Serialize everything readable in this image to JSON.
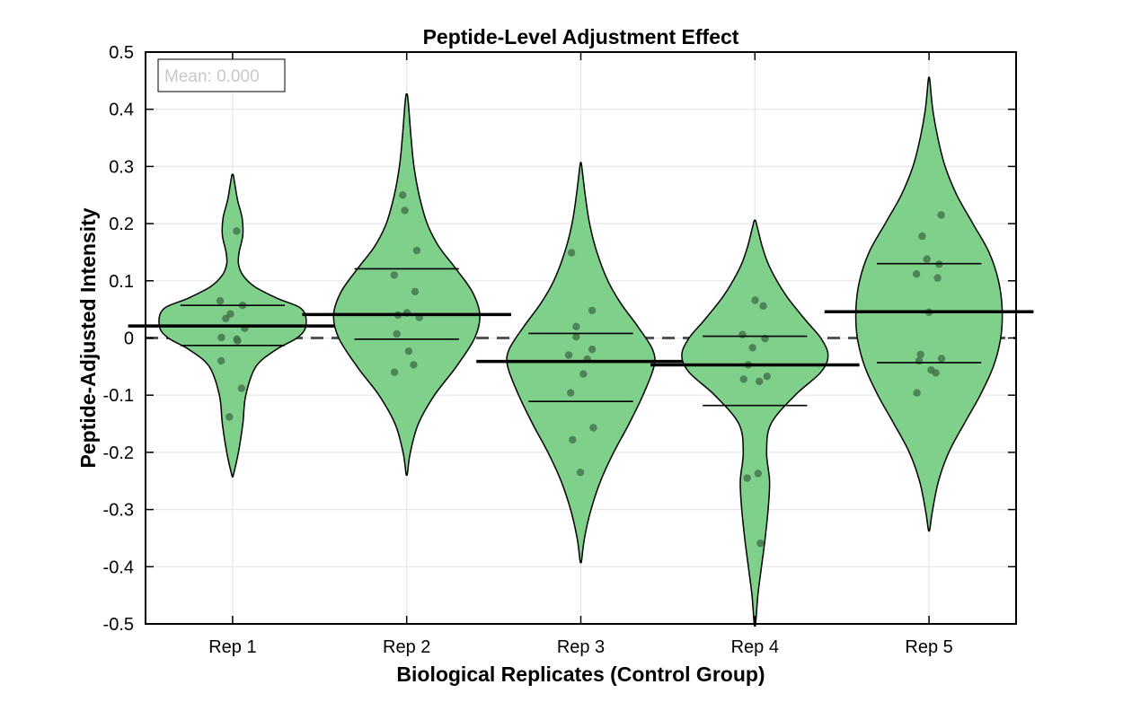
{
  "chart_data": {
    "type": "violin",
    "title": "Peptide-Level Adjustment Effect",
    "xlabel": "Biological Replicates (Control Group)",
    "ylabel": "Peptide-Adjusted Intensity",
    "ylim": [
      -0.5,
      0.5
    ],
    "yticks": [
      "0.5",
      "0.4",
      "0.3",
      "0.2",
      "0.1",
      "0",
      "-0.1",
      "-0.2",
      "-0.3",
      "-0.4",
      "-0.5"
    ],
    "ytick_values": [
      0.5,
      0.4,
      0.3,
      0.2,
      0.1,
      0,
      -0.1,
      -0.2,
      -0.3,
      -0.4,
      -0.5
    ],
    "categories": [
      "Rep 1",
      "Rep 2",
      "Rep 3",
      "Rep 4",
      "Rep 5"
    ],
    "annotation": "Mean: 0.000",
    "reference_line": 0,
    "grid": true,
    "colors": {
      "violin_fill": "#7fd08a",
      "violin_edge": "#000000",
      "points": "#3d6b45",
      "reference": "#555555"
    },
    "series": [
      {
        "category": "Rep 1",
        "median": 0.021,
        "q1": -0.013,
        "q3": 0.057,
        "range": [
          -0.24,
          0.285
        ],
        "points": [
          0.187,
          0.065,
          0.057,
          0.042,
          0.034,
          0.017,
          0.001,
          -0.002,
          -0.005,
          -0.04,
          -0.088,
          -0.138
        ],
        "density": [
          [
            -0.24,
            0.01
          ],
          [
            -0.2,
            0.08
          ],
          [
            -0.15,
            0.14
          ],
          [
            -0.1,
            0.18
          ],
          [
            -0.05,
            0.32
          ],
          [
            -0.02,
            0.6
          ],
          [
            0.0,
            0.88
          ],
          [
            0.02,
            1.0
          ],
          [
            0.05,
            0.95
          ],
          [
            0.07,
            0.6
          ],
          [
            0.09,
            0.3
          ],
          [
            0.11,
            0.14
          ],
          [
            0.13,
            0.08
          ],
          [
            0.15,
            0.09
          ],
          [
            0.18,
            0.14
          ],
          [
            0.21,
            0.13
          ],
          [
            0.24,
            0.07
          ],
          [
            0.27,
            0.03
          ],
          [
            0.285,
            0.01
          ]
        ]
      },
      {
        "category": "Rep 2",
        "median": 0.041,
        "q1": -0.002,
        "q3": 0.121,
        "range": [
          -0.237,
          0.425
        ],
        "points": [
          0.25,
          0.223,
          0.153,
          0.11,
          0.081,
          0.044,
          0.04,
          0.036,
          0.007,
          -0.023,
          -0.047,
          -0.06
        ],
        "density": [
          [
            -0.237,
            0.01
          ],
          [
            -0.2,
            0.05
          ],
          [
            -0.15,
            0.16
          ],
          [
            -0.1,
            0.38
          ],
          [
            -0.05,
            0.68
          ],
          [
            0.0,
            0.93
          ],
          [
            0.04,
            1.0
          ],
          [
            0.08,
            0.9
          ],
          [
            0.12,
            0.68
          ],
          [
            0.16,
            0.44
          ],
          [
            0.2,
            0.28
          ],
          [
            0.25,
            0.17
          ],
          [
            0.3,
            0.1
          ],
          [
            0.35,
            0.06
          ],
          [
            0.4,
            0.03
          ],
          [
            0.425,
            0.01
          ]
        ]
      },
      {
        "category": "Rep 3",
        "median": -0.041,
        "q1": -0.111,
        "q3": 0.008,
        "range": [
          -0.39,
          0.303
        ],
        "points": [
          0.149,
          0.048,
          0.02,
          0.002,
          -0.02,
          -0.03,
          -0.037,
          -0.063,
          -0.096,
          -0.157,
          -0.178,
          -0.235
        ],
        "density": [
          [
            -0.39,
            0.01
          ],
          [
            -0.35,
            0.05
          ],
          [
            -0.3,
            0.14
          ],
          [
            -0.25,
            0.27
          ],
          [
            -0.2,
            0.45
          ],
          [
            -0.15,
            0.66
          ],
          [
            -0.1,
            0.85
          ],
          [
            -0.05,
            1.0
          ],
          [
            -0.02,
            0.98
          ],
          [
            0.02,
            0.78
          ],
          [
            0.06,
            0.55
          ],
          [
            0.1,
            0.37
          ],
          [
            0.15,
            0.22
          ],
          [
            0.2,
            0.12
          ],
          [
            0.25,
            0.06
          ],
          [
            0.303,
            0.01
          ]
        ]
      },
      {
        "category": "Rep 4",
        "median": -0.047,
        "q1": -0.118,
        "q3": 0.003,
        "range": [
          -0.5,
          0.205
        ],
        "points": [
          0.066,
          0.056,
          0.006,
          -0.001,
          -0.017,
          -0.047,
          -0.067,
          -0.072,
          -0.076,
          -0.237,
          -0.245,
          -0.359
        ],
        "density": [
          [
            -0.5,
            0.01
          ],
          [
            -0.45,
            0.04
          ],
          [
            -0.4,
            0.09
          ],
          [
            -0.35,
            0.14
          ],
          [
            -0.3,
            0.18
          ],
          [
            -0.25,
            0.2
          ],
          [
            -0.2,
            0.16
          ],
          [
            -0.15,
            0.22
          ],
          [
            -0.1,
            0.55
          ],
          [
            -0.06,
            0.9
          ],
          [
            -0.03,
            1.0
          ],
          [
            0.0,
            0.9
          ],
          [
            0.03,
            0.7
          ],
          [
            0.07,
            0.45
          ],
          [
            0.1,
            0.3
          ],
          [
            0.13,
            0.18
          ],
          [
            0.16,
            0.1
          ],
          [
            0.19,
            0.04
          ],
          [
            0.205,
            0.01
          ]
        ]
      },
      {
        "category": "Rep 5",
        "median": 0.046,
        "q1": -0.043,
        "q3": 0.13,
        "range": [
          -0.335,
          0.452
        ],
        "points": [
          0.215,
          0.178,
          0.138,
          0.129,
          0.112,
          0.105,
          0.045,
          -0.029,
          -0.036,
          -0.04,
          -0.056,
          -0.061,
          -0.096
        ],
        "density": [
          [
            -0.335,
            0.01
          ],
          [
            -0.3,
            0.05
          ],
          [
            -0.25,
            0.13
          ],
          [
            -0.2,
            0.27
          ],
          [
            -0.15,
            0.48
          ],
          [
            -0.1,
            0.7
          ],
          [
            -0.05,
            0.88
          ],
          [
            0.0,
            0.98
          ],
          [
            0.05,
            1.0
          ],
          [
            0.1,
            0.95
          ],
          [
            0.15,
            0.82
          ],
          [
            0.2,
            0.6
          ],
          [
            0.25,
            0.38
          ],
          [
            0.3,
            0.22
          ],
          [
            0.35,
            0.12
          ],
          [
            0.4,
            0.05
          ],
          [
            0.452,
            0.01
          ]
        ]
      }
    ]
  }
}
